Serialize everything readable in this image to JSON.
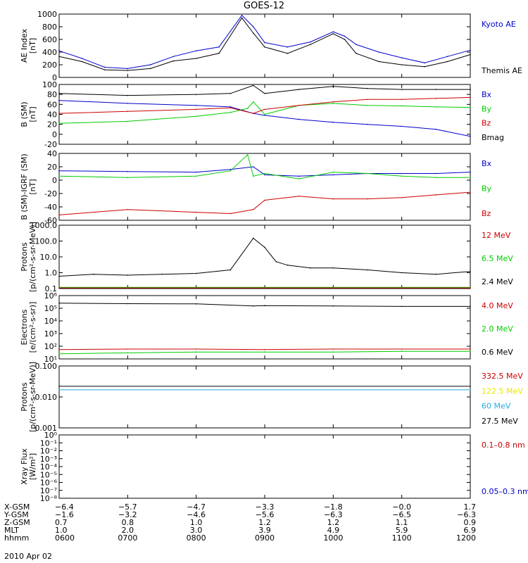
{
  "title": "GOES-12",
  "date_label": "2010 Apr 02",
  "colors": {
    "black": "#000000",
    "blue": "#0000cc",
    "red": "#cc0000",
    "green": "#00cc00",
    "cyan": "#22aadd",
    "yellow": "#e8e800"
  },
  "chart_data": [
    {
      "type": "line",
      "ylabel": [
        "AE Index",
        "[nT]"
      ],
      "yticks": [
        "0",
        "200",
        "400",
        "600",
        "800",
        "1000"
      ],
      "ylim": [
        0,
        1000
      ],
      "legend": [
        {
          "label": "Kyoto AE",
          "color": "#0000cc"
        },
        {
          "label": "Themis AE",
          "color": "#000000"
        }
      ],
      "series": [
        {
          "name": "Kyoto AE",
          "color": "#0000cc",
          "x": [
            "06:00",
            "06:20",
            "06:40",
            "07:00",
            "07:20",
            "07:40",
            "08:00",
            "08:20",
            "08:40",
            "08:50",
            "09:00",
            "09:20",
            "09:40",
            "10:00",
            "10:10",
            "10:20",
            "10:40",
            "11:00",
            "11:20",
            "11:40",
            "12:00"
          ],
          "y": [
            420,
            300,
            160,
            140,
            200,
            330,
            420,
            480,
            980,
            800,
            550,
            480,
            560,
            720,
            650,
            520,
            400,
            310,
            230,
            330,
            430
          ]
        },
        {
          "name": "Themis AE",
          "color": "#000000",
          "x": [
            "06:00",
            "06:20",
            "06:40",
            "07:00",
            "07:20",
            "07:40",
            "08:00",
            "08:20",
            "08:40",
            "08:50",
            "09:00",
            "09:20",
            "09:40",
            "10:00",
            "10:10",
            "10:20",
            "10:40",
            "11:00",
            "11:20",
            "11:40",
            "12:00"
          ],
          "y": [
            330,
            250,
            120,
            110,
            140,
            260,
            300,
            380,
            940,
            700,
            480,
            380,
            520,
            690,
            600,
            380,
            250,
            200,
            170,
            250,
            360
          ]
        }
      ]
    },
    {
      "type": "line",
      "ylabel": [
        "B (SM)",
        "[nT]"
      ],
      "yticks": [
        "-20",
        "0",
        "20",
        "40",
        "60",
        "80",
        "100"
      ],
      "ylim": [
        -20,
        100
      ],
      "legend": [
        {
          "label": "Bx",
          "color": "#0000cc"
        },
        {
          "label": "By",
          "color": "#00cc00"
        },
        {
          "label": "Bz",
          "color": "#cc0000"
        },
        {
          "label": "Bmag",
          "color": "#000000"
        }
      ],
      "series": [
        {
          "name": "Bx",
          "color": "#0000cc",
          "x": [
            "06:00",
            "07:00",
            "08:00",
            "08:30",
            "08:50",
            "09:00",
            "09:30",
            "10:00",
            "10:30",
            "11:00",
            "11:30",
            "12:00"
          ],
          "y": [
            68,
            62,
            58,
            55,
            42,
            38,
            30,
            24,
            20,
            16,
            10,
            -4
          ]
        },
        {
          "name": "By",
          "color": "#00cc00",
          "x": [
            "06:00",
            "07:00",
            "08:00",
            "08:30",
            "08:45",
            "08:50",
            "09:00",
            "09:30",
            "10:00",
            "10:30",
            "11:00",
            "11:30",
            "12:00"
          ],
          "y": [
            22,
            26,
            36,
            44,
            52,
            65,
            40,
            58,
            62,
            58,
            57,
            55,
            54
          ]
        },
        {
          "name": "Bz",
          "color": "#cc0000",
          "x": [
            "06:00",
            "07:00",
            "08:00",
            "08:30",
            "08:50",
            "09:00",
            "09:30",
            "10:00",
            "10:30",
            "11:00",
            "11:30",
            "12:00"
          ],
          "y": [
            42,
            46,
            50,
            53,
            42,
            50,
            58,
            65,
            70,
            70,
            72,
            74
          ]
        },
        {
          "name": "Bmag",
          "color": "#000000",
          "x": [
            "06:00",
            "07:00",
            "08:00",
            "08:30",
            "08:50",
            "09:00",
            "09:30",
            "10:00",
            "10:30",
            "11:00",
            "11:30",
            "12:00"
          ],
          "y": [
            82,
            78,
            80,
            82,
            98,
            82,
            90,
            96,
            92,
            90,
            90,
            90
          ]
        }
      ]
    },
    {
      "type": "line",
      "ylabel": [
        "B (SM)-IGRF (SM)",
        "[nT]"
      ],
      "yticks": [
        "-60",
        "-40",
        "-20",
        "0",
        "20",
        "40"
      ],
      "ylim": [
        -60,
        40
      ],
      "legend": [
        {
          "label": "Bx",
          "color": "#0000cc"
        },
        {
          "label": "By",
          "color": "#00cc00"
        },
        {
          "label": "Bz",
          "color": "#cc0000"
        }
      ],
      "series": [
        {
          "name": "Bx",
          "color": "#0000cc",
          "x": [
            "06:00",
            "07:00",
            "08:00",
            "08:30",
            "08:50",
            "09:00",
            "09:30",
            "10:00",
            "10:30",
            "11:00",
            "11:30",
            "12:00"
          ],
          "y": [
            14,
            13,
            12,
            16,
            20,
            8,
            6,
            8,
            10,
            10,
            10,
            12
          ]
        },
        {
          "name": "By",
          "color": "#00cc00",
          "x": [
            "06:00",
            "07:00",
            "08:00",
            "08:30",
            "08:45",
            "08:50",
            "09:00",
            "09:30",
            "10:00",
            "10:30",
            "11:00",
            "11:30",
            "12:00"
          ],
          "y": [
            6,
            4,
            6,
            14,
            38,
            6,
            10,
            2,
            12,
            10,
            6,
            4,
            4
          ]
        },
        {
          "name": "Bz",
          "color": "#cc0000",
          "x": [
            "06:00",
            "07:00",
            "08:00",
            "08:30",
            "08:50",
            "09:00",
            "09:30",
            "10:00",
            "10:30",
            "11:00",
            "11:30",
            "12:00"
          ],
          "y": [
            -52,
            -44,
            -48,
            -50,
            -44,
            -30,
            -24,
            -28,
            -28,
            -26,
            -22,
            -18
          ]
        }
      ]
    },
    {
      "type": "line",
      "ylabel": [
        "Protons",
        "[p/(cm²-s-sr-MeV)]"
      ],
      "yticks": [
        "0.1",
        "1.0",
        "10.0",
        "100.0",
        "1000.0"
      ],
      "yscale": "log",
      "ylim": [
        0.1,
        1000
      ],
      "legend": [
        {
          "label": "12 MeV",
          "color": "#cc0000"
        },
        {
          "label": "6.5 MeV",
          "color": "#00cc00"
        },
        {
          "label": "2.4 MeV",
          "color": "#000000"
        }
      ],
      "series": [
        {
          "name": "2.4 MeV",
          "color": "#000000",
          "x": [
            "06:00",
            "06:30",
            "07:00",
            "07:30",
            "08:00",
            "08:30",
            "08:50",
            "09:00",
            "09:10",
            "09:20",
            "09:40",
            "10:00",
            "10:30",
            "11:00",
            "11:30",
            "12:00"
          ],
          "y": [
            0.6,
            0.8,
            0.7,
            0.8,
            0.9,
            1.5,
            150,
            40,
            5,
            3,
            2,
            2,
            1.5,
            1.0,
            0.8,
            1.2
          ]
        },
        {
          "name": "6.5 MeV",
          "color": "#00cc00",
          "x": [
            "06:00",
            "07:00",
            "08:00",
            "09:00",
            "10:00",
            "11:00",
            "12:00"
          ],
          "y": [
            0.12,
            0.12,
            0.12,
            0.12,
            0.12,
            0.12,
            0.12
          ]
        },
        {
          "name": "12 MeV",
          "color": "#cc0000",
          "x": [
            "06:00",
            "07:00",
            "08:00",
            "09:00",
            "10:00",
            "11:00",
            "12:00"
          ],
          "y": [
            0.11,
            0.11,
            0.11,
            0.11,
            0.11,
            0.11,
            0.11
          ]
        }
      ]
    },
    {
      "type": "line",
      "ylabel": [
        "Electrons",
        "[e/(cm²-s-sr)]"
      ],
      "yticks": [
        "10¹",
        "10²",
        "10³",
        "10⁴",
        "10⁵",
        "10⁶"
      ],
      "yscale": "log",
      "ylim": [
        10,
        1000000
      ],
      "legend": [
        {
          "label": "4.0 MeV",
          "color": "#cc0000"
        },
        {
          "label": "2.0 MeV",
          "color": "#00cc00"
        },
        {
          "label": "0.6 MeV",
          "color": "#000000"
        }
      ],
      "series": [
        {
          "name": "0.6 MeV",
          "color": "#000000",
          "x": [
            "06:00",
            "07:00",
            "08:00",
            "08:50",
            "09:00",
            "10:00",
            "11:00",
            "12:00"
          ],
          "y": [
            250000,
            230000,
            220000,
            150000,
            160000,
            150000,
            140000,
            140000
          ]
        },
        {
          "name": "4.0 MeV",
          "color": "#cc0000",
          "x": [
            "06:00",
            "07:00",
            "08:00",
            "09:00",
            "10:00",
            "11:00",
            "12:00"
          ],
          "y": [
            55,
            60,
            60,
            55,
            60,
            60,
            60
          ]
        },
        {
          "name": "2.0 MeV",
          "color": "#00cc00",
          "x": [
            "06:00",
            "07:00",
            "08:00",
            "09:00",
            "10:00",
            "11:00",
            "12:00"
          ],
          "y": [
            25,
            30,
            35,
            35,
            35,
            40,
            40
          ]
        }
      ]
    },
    {
      "type": "line",
      "ylabel": [
        "Protons",
        "[p/(cm²-s-sr-MeV)]"
      ],
      "yticks": [
        "0.001",
        "0.010",
        "0.100"
      ],
      "yscale": "log",
      "ylim": [
        0.001,
        0.1
      ],
      "legend": [
        {
          "label": "332.5 MeV",
          "color": "#cc0000"
        },
        {
          "label": "122.5 MeV",
          "color": "#e8e800"
        },
        {
          "label": "60 MeV",
          "color": "#22aadd"
        },
        {
          "label": "27.5 MeV",
          "color": "#000000"
        }
      ],
      "series": [
        {
          "name": "27.5 MeV",
          "color": "#000000",
          "x": [
            "06:00",
            "12:00"
          ],
          "y": [
            0.022,
            0.022
          ]
        },
        {
          "name": "60 MeV",
          "color": "#22aadd",
          "x": [
            "06:00",
            "12:00"
          ],
          "y": [
            0.017,
            0.017
          ]
        }
      ]
    },
    {
      "type": "line",
      "ylabel": [
        "Xray Flux",
        "[W/m²]"
      ],
      "yticks": [
        "10⁻⁸",
        "10⁻⁷",
        "10⁻⁶",
        "10⁻⁵",
        "10⁻⁴",
        "10⁻³",
        "10⁻²",
        "10⁻¹",
        "10⁰"
      ],
      "yscale": "log",
      "ylim": [
        1e-08,
        1
      ],
      "legend": [
        {
          "label": "0.1–0.8 nm",
          "color": "#cc0000"
        },
        {
          "label": "0.05–0.3 nm",
          "color": "#0000cc"
        }
      ],
      "series": []
    }
  ],
  "xaxis": {
    "positions": [
      "06:00",
      "07:00",
      "08:00",
      "09:00",
      "10:00",
      "11:00",
      "12:00"
    ],
    "rows": [
      {
        "label": "X-GSM",
        "values": [
          "−6.4",
          "−5.7",
          "−4.7",
          "−3.3",
          "−1.8",
          "−0.0",
          "1.7"
        ]
      },
      {
        "label": "Y-GSM",
        "values": [
          "−1.6",
          "−3.2",
          "−4.6",
          "−5.6",
          "−6.3",
          "−6.5",
          "−6.3"
        ]
      },
      {
        "label": "Z-GSM",
        "values": [
          "0.7",
          "0.8",
          "1.0",
          "1.2",
          "1.2",
          "1.1",
          "0.9"
        ]
      },
      {
        "label": "MLT",
        "values": [
          "1.0",
          "2.0",
          "3.0",
          "3.9",
          "4.9",
          "5.9",
          "6.9"
        ]
      },
      {
        "label": "hhmm",
        "values": [
          "0600",
          "0700",
          "0800",
          "0900",
          "1000",
          "1100",
          "1200"
        ]
      }
    ]
  }
}
